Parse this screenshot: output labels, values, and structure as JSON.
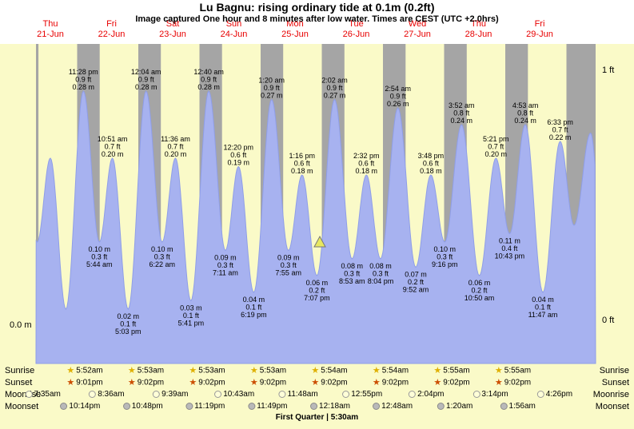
{
  "header": {
    "title": "Lu Bagnu: rising  ordinary tide at 0.1m (0.2ft)",
    "subtitle": "Image captured One hour and 8 minutes after low water. Times are CEST (UTC +2.0hrs)"
  },
  "chart_data": {
    "type": "area",
    "title": "Tide height curve for Lu Bagnu, 21-Jun to 29-Jun",
    "y_axis": {
      "left_tick": "0.0 m",
      "right_ticks": [
        "1 ft",
        "0 ft"
      ],
      "ylim_m": [
        0,
        0.3048
      ]
    },
    "days": [
      {
        "weekday": "Thu",
        "date": "21-Jun"
      },
      {
        "weekday": "Fri",
        "date": "22-Jun"
      },
      {
        "weekday": "Sat",
        "date": "23-Jun"
      },
      {
        "weekday": "Sun",
        "date": "24-Jun"
      },
      {
        "weekday": "Mon",
        "date": "25-Jun"
      },
      {
        "weekday": "Tue",
        "date": "26-Jun"
      },
      {
        "weekday": "Wed",
        "date": "27-Jun"
      },
      {
        "weekday": "Thu",
        "date": "28-Jun"
      },
      {
        "weekday": "Fri",
        "date": "29-Jun"
      }
    ],
    "colors": {
      "plot_background": "#fafac8",
      "night_band": "#a5a5a5",
      "water": "#a7b2f0",
      "water_edge": "#8f9ee8",
      "day_label": "#e80000",
      "marker": "#e8e860"
    },
    "night_bands": [
      [
        2.0,
        5.85
      ],
      [
        21.02,
        29.87
      ],
      [
        45.03,
        53.88
      ],
      [
        69.03,
        77.88
      ],
      [
        93.03,
        101.88
      ],
      [
        117.03,
        125.9
      ],
      [
        141.03,
        149.9
      ],
      [
        165.03,
        173.92
      ],
      [
        189.03,
        197.92
      ],
      [
        213.03,
        226.0
      ]
    ],
    "tide_events": [
      {
        "t": -0.9,
        "h": 0.28,
        "kind": "edge",
        "lines": null
      },
      {
        "t": 5.33,
        "h": 0.1,
        "kind": "edge",
        "lines": null
      },
      {
        "t": 10.5,
        "h": 0.2,
        "kind": "edge",
        "lines": null
      },
      {
        "t": 16.6,
        "h": 0.02,
        "kind": "edge",
        "lines": null
      },
      {
        "t": 23.47,
        "h": 0.28,
        "kind": "high",
        "lines": [
          "11:28 pm",
          "0.9 ft",
          "0.28 m"
        ]
      },
      {
        "t": 29.73,
        "h": 0.1,
        "kind": "low",
        "lines": [
          "0.10 m",
          "0.3 ft",
          "5:44 am"
        ]
      },
      {
        "t": 34.85,
        "h": 0.2,
        "kind": "high",
        "lines": [
          "10:51 am",
          "0.7 ft",
          "0.20 m"
        ]
      },
      {
        "t": 41.05,
        "h": 0.02,
        "kind": "low",
        "lines": [
          "0.02 m",
          "0.1 ft",
          "5:03 pm"
        ]
      },
      {
        "t": 48.07,
        "h": 0.28,
        "kind": "high",
        "lines": [
          "12:04 am",
          "0.9 ft",
          "0.28 m"
        ]
      },
      {
        "t": 54.37,
        "h": 0.1,
        "kind": "low",
        "lines": [
          "0.10 m",
          "0.3 ft",
          "6:22 am"
        ]
      },
      {
        "t": 59.6,
        "h": 0.2,
        "kind": "high",
        "lines": [
          "11:36 am",
          "0.7 ft",
          "0.20 m"
        ]
      },
      {
        "t": 65.68,
        "h": 0.03,
        "kind": "low",
        "lines": [
          "0.03 m",
          "0.1 ft",
          "5:41 pm"
        ]
      },
      {
        "t": 72.67,
        "h": 0.28,
        "kind": "high",
        "lines": [
          "12:40 am",
          "0.9 ft",
          "0.28 m"
        ]
      },
      {
        "t": 79.18,
        "h": 0.09,
        "kind": "low",
        "lines": [
          "0.09 m",
          "0.3 ft",
          "7:11 am"
        ]
      },
      {
        "t": 84.33,
        "h": 0.19,
        "kind": "high",
        "lines": [
          "12:20 pm",
          "0.6 ft",
          "0.19 m"
        ]
      },
      {
        "t": 90.32,
        "h": 0.04,
        "kind": "low",
        "lines": [
          "0.04 m",
          "0.1 ft",
          "6:19 pm"
        ]
      },
      {
        "t": 97.33,
        "h": 0.27,
        "kind": "high",
        "lines": [
          "1:20 am",
          "0.9 ft",
          "0.27 m"
        ]
      },
      {
        "t": 103.92,
        "h": 0.09,
        "kind": "low",
        "lines": [
          "0.09 m",
          "0.3 ft",
          "7:55 am"
        ]
      },
      {
        "t": 109.27,
        "h": 0.18,
        "kind": "high",
        "lines": [
          "1:16 pm",
          "0.6 ft",
          "0.18 m"
        ]
      },
      {
        "t": 115.12,
        "h": 0.06,
        "kind": "low",
        "lines": [
          "0.06 m",
          "0.2 ft",
          "7:07 pm"
        ]
      },
      {
        "t": 122.03,
        "h": 0.27,
        "kind": "high",
        "lines": [
          "2:02 am",
          "0.9 ft",
          "0.27 m"
        ]
      },
      {
        "t": 128.88,
        "h": 0.08,
        "kind": "low",
        "lines": [
          "0.08 m",
          "0.3 ft",
          "8:53 am"
        ]
      },
      {
        "t": 134.53,
        "h": 0.18,
        "kind": "high",
        "lines": [
          "2:32 pm",
          "0.6 ft",
          "0.18 m"
        ]
      },
      {
        "t": 140.07,
        "h": 0.08,
        "kind": "low",
        "lines": [
          "0.08 m",
          "0.3 ft",
          "8:04 pm"
        ]
      },
      {
        "t": 146.9,
        "h": 0.26,
        "kind": "high",
        "lines": [
          "2:54 am",
          "0.9 ft",
          "0.26 m"
        ]
      },
      {
        "t": 153.87,
        "h": 0.07,
        "kind": "low",
        "lines": [
          "0.07 m",
          "0.2 ft",
          "9:52 am"
        ]
      },
      {
        "t": 159.8,
        "h": 0.18,
        "kind": "high",
        "lines": [
          "3:48 pm",
          "0.6 ft",
          "0.18 m"
        ]
      },
      {
        "t": 165.27,
        "h": 0.1,
        "kind": "low",
        "lines": [
          "0.10 m",
          "0.3 ft",
          "9:16 pm"
        ]
      },
      {
        "t": 171.87,
        "h": 0.24,
        "kind": "high",
        "lines": [
          "3:52 am",
          "0.8 ft",
          "0.24 m"
        ]
      },
      {
        "t": 178.83,
        "h": 0.06,
        "kind": "low",
        "lines": [
          "0.06 m",
          "0.2 ft",
          "10:50 am"
        ]
      },
      {
        "t": 185.35,
        "h": 0.2,
        "kind": "high",
        "lines": [
          "5:21 pm",
          "0.7 ft",
          "0.20 m"
        ]
      },
      {
        "t": 190.72,
        "h": 0.11,
        "kind": "low",
        "lines": [
          "0.11 m",
          "0.4 ft",
          "10:43 pm"
        ]
      },
      {
        "t": 196.88,
        "h": 0.24,
        "kind": "high",
        "lines": [
          "4:53 am",
          "0.8 ft",
          "0.24 m"
        ]
      },
      {
        "t": 203.78,
        "h": 0.04,
        "kind": "low",
        "lines": [
          "0.04 m",
          "0.1 ft",
          "11:47 am"
        ]
      },
      {
        "t": 210.55,
        "h": 0.22,
        "kind": "high",
        "lines": [
          "6:33 pm",
          "0.7 ft",
          "0.22 m"
        ]
      },
      {
        "t": 216.0,
        "h": 0.12,
        "kind": "edge",
        "lines": null
      },
      {
        "t": 222.5,
        "h": 0.23,
        "kind": "edge",
        "lines": null
      },
      {
        "t": 228.0,
        "h": 0.06,
        "kind": "edge",
        "lines": null
      }
    ],
    "marker": {
      "t": 116.25,
      "h": 0.1
    }
  },
  "astro": {
    "rows": [
      {
        "key": "sunrise",
        "name": "Sunrise",
        "icon": "sunrise-star-icon",
        "items": [
          {
            "t": 24,
            "label": "5:52am"
          },
          {
            "t": 48,
            "label": "5:53am"
          },
          {
            "t": 72,
            "label": "5:53am"
          },
          {
            "t": 96,
            "label": "5:53am"
          },
          {
            "t": 120,
            "label": "5:54am"
          },
          {
            "t": 144,
            "label": "5:54am"
          },
          {
            "t": 168,
            "label": "5:55am"
          },
          {
            "t": 192,
            "label": "5:55am"
          }
        ]
      },
      {
        "key": "sunset",
        "name": "Sunset",
        "icon": "sunset-star-icon",
        "items": [
          {
            "t": 24,
            "label": "9:01pm"
          },
          {
            "t": 48,
            "label": "9:02pm"
          },
          {
            "t": 72,
            "label": "9:02pm"
          },
          {
            "t": 96,
            "label": "9:02pm"
          },
          {
            "t": 120,
            "label": "9:02pm"
          },
          {
            "t": 144,
            "label": "9:02pm"
          },
          {
            "t": 168,
            "label": "9:02pm"
          },
          {
            "t": 192,
            "label": "9:02pm"
          }
        ]
      },
      {
        "key": "moonrise",
        "name": "Moonrise",
        "icon": "moonrise-moon-icon",
        "items": [
          {
            "t": 7.58,
            "label": "7:35am"
          },
          {
            "t": 32.6,
            "label": "8:36am"
          },
          {
            "t": 57.65,
            "label": "9:39am"
          },
          {
            "t": 82.72,
            "label": "10:43am"
          },
          {
            "t": 107.8,
            "label": "11:48am"
          },
          {
            "t": 132.92,
            "label": "12:55pm"
          },
          {
            "t": 158.07,
            "label": "2:04pm"
          },
          {
            "t": 183.23,
            "label": "3:14pm"
          },
          {
            "t": 208.43,
            "label": "4:26pm"
          }
        ]
      },
      {
        "key": "moonset",
        "name": "Moonset",
        "icon": "moonset-moon-icon",
        "items": [
          {
            "t": 22.23,
            "label": "10:14pm"
          },
          {
            "t": 46.8,
            "label": "10:48pm"
          },
          {
            "t": 71.32,
            "label": "11:19pm"
          },
          {
            "t": 95.82,
            "label": "11:49pm"
          },
          {
            "t": 120.3,
            "label": "12:18am"
          },
          {
            "t": 144.8,
            "label": "12:48am"
          },
          {
            "t": 169.33,
            "label": "1:20am"
          },
          {
            "t": 193.93,
            "label": "1:56am"
          }
        ]
      }
    ],
    "phase": "First Quarter | 5:30am"
  }
}
